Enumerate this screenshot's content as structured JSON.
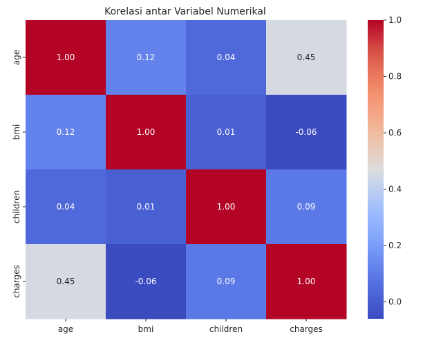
{
  "chart_data": {
    "type": "heatmap",
    "title": "Korelasi antar Variabel Numerikal",
    "x_categories": [
      "age",
      "bmi",
      "children",
      "charges"
    ],
    "y_categories": [
      "age",
      "bmi",
      "children",
      "charges"
    ],
    "values": [
      [
        1.0,
        0.12,
        0.04,
        0.45
      ],
      [
        0.12,
        1.0,
        0.01,
        -0.06
      ],
      [
        0.04,
        0.01,
        1.0,
        0.09
      ],
      [
        0.45,
        -0.06,
        0.09,
        1.0
      ]
    ],
    "value_labels": [
      [
        "1.00",
        "0.12",
        "0.04",
        "0.45"
      ],
      [
        "0.12",
        "1.00",
        "0.01",
        "-0.06"
      ],
      [
        "0.04",
        "0.01",
        "1.00",
        "0.09"
      ],
      [
        "0.45",
        "-0.06",
        "0.09",
        "1.00"
      ]
    ],
    "colormap": "coolwarm",
    "colorbar": {
      "range": [
        -0.06,
        1.0
      ],
      "ticks": [
        0.0,
        0.2,
        0.4,
        0.6,
        0.8,
        1.0
      ],
      "tick_labels": [
        "0.0",
        "0.2",
        "0.4",
        "0.6",
        "0.8",
        "1.0"
      ]
    },
    "annotation_colors": {
      "light": "#ffffff",
      "dark": "#262626"
    }
  }
}
